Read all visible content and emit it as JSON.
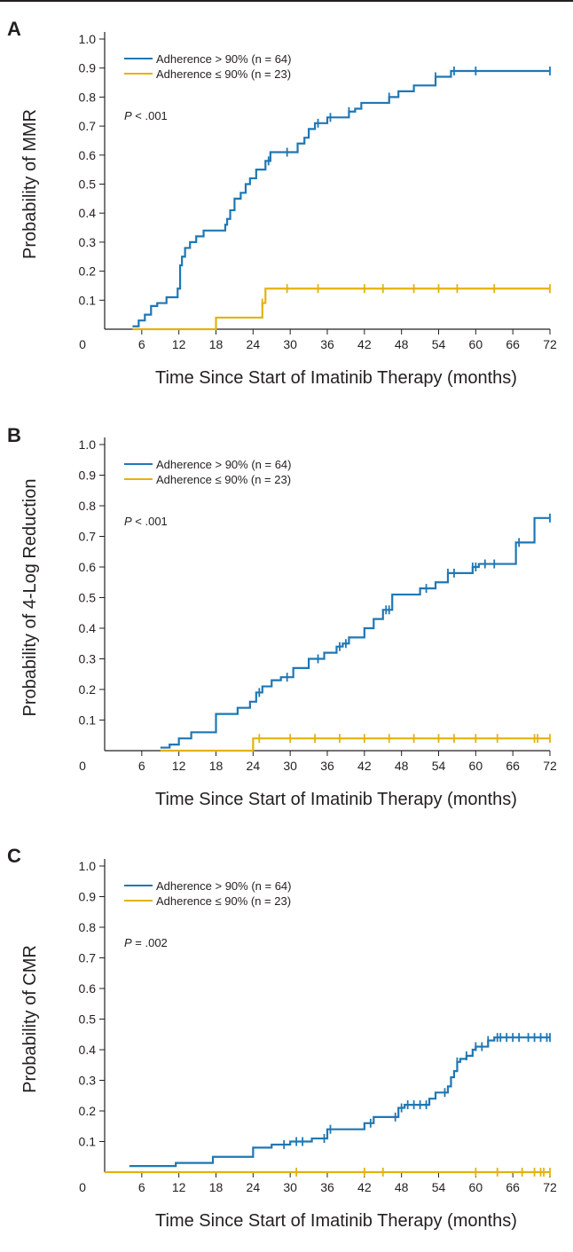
{
  "chart_data": [
    {
      "type": "line",
      "panel": "A",
      "ylabel": "Probability of MMR",
      "xlabel": "Time Since Start of Imatinib Therapy (months)",
      "xticks": [
        "0",
        "6",
        "12",
        "18",
        "24",
        "30",
        "36",
        "42",
        "48",
        "54",
        "60",
        "66",
        "72"
      ],
      "yticks": [
        "1.0",
        "0.9",
        "0.8",
        "0.7",
        "0.6",
        "0.5",
        "0.4",
        "0.3",
        "0.2",
        "0.1"
      ],
      "xlim": [
        0,
        72
      ],
      "ylim": [
        0,
        1.0
      ],
      "annotation": {
        "prefix": "P",
        "text": " < .001"
      },
      "series": [
        {
          "name": "Adherence > 90% (n = 64)",
          "color": "#1f77b4",
          "x": [
            4.5,
            5.5,
            6.5,
            7.5,
            8.5,
            10,
            11.8,
            12.2,
            12.5,
            13,
            13.8,
            14.8,
            16,
            19.5,
            19.8,
            20.3,
            21,
            22,
            22.8,
            23.5,
            24.5,
            26,
            26.8,
            30,
            31.2,
            32.3,
            33,
            34,
            36,
            36.5,
            39.5,
            40.5,
            41.5,
            43,
            46,
            47.5,
            50,
            53.5,
            56,
            72
          ],
          "y": [
            0.01,
            0.03,
            0.05,
            0.08,
            0.09,
            0.11,
            0.14,
            0.22,
            0.25,
            0.28,
            0.3,
            0.32,
            0.34,
            0.36,
            0.38,
            0.41,
            0.45,
            0.47,
            0.5,
            0.52,
            0.55,
            0.58,
            0.61,
            0.61,
            0.64,
            0.66,
            0.69,
            0.71,
            0.73,
            0.73,
            0.75,
            0.76,
            0.78,
            0.78,
            0.8,
            0.82,
            0.84,
            0.87,
            0.89,
            0.89
          ],
          "censored": [
            26.5,
            29.5,
            34.5,
            36.5,
            39.5,
            46,
            53.5,
            56.5,
            60,
            72
          ]
        },
        {
          "name": "Adherence ≤ 90% (n = 23)",
          "color": "#e3b20e",
          "x": [
            4.5,
            18,
            25.5,
            26,
            72
          ],
          "y": [
            0,
            0.04,
            0.09,
            0.14,
            0.14
          ],
          "censored": [
            25.5,
            29.5,
            34.5,
            42,
            45,
            50,
            54,
            57,
            63,
            72
          ]
        }
      ]
    },
    {
      "type": "line",
      "panel": "B",
      "ylabel": "Probability of 4-Log Reduction",
      "xlabel": "Time Since Start of Imatinib Therapy (months)",
      "xticks": [
        "0",
        "6",
        "12",
        "18",
        "24",
        "30",
        "36",
        "42",
        "48",
        "54",
        "60",
        "66",
        "72"
      ],
      "yticks": [
        "1.0",
        "0.9",
        "0.8",
        "0.7",
        "0.6",
        "0.5",
        "0.4",
        "0.3",
        "0.2",
        "0.1"
      ],
      "xlim": [
        0,
        72
      ],
      "ylim": [
        0,
        1.0
      ],
      "annotation": {
        "prefix": "P",
        "text": " < .001"
      },
      "series": [
        {
          "name": "Adherence > 90% (n = 64)",
          "color": "#1f77b4",
          "x": [
            9,
            10.5,
            12,
            14,
            18,
            21.5,
            23.5,
            24.5,
            25.5,
            27,
            28.5,
            30.5,
            33,
            35.5,
            37.5,
            38.5,
            39.5,
            42,
            43.5,
            45,
            46.5,
            51,
            53.5,
            55.5,
            59.5,
            60.5,
            66.5,
            69.5,
            72
          ],
          "y": [
            0.01,
            0.02,
            0.04,
            0.06,
            0.12,
            0.14,
            0.16,
            0.19,
            0.21,
            0.23,
            0.24,
            0.27,
            0.3,
            0.32,
            0.34,
            0.35,
            0.37,
            0.4,
            0.43,
            0.46,
            0.51,
            0.53,
            0.55,
            0.58,
            0.6,
            0.61,
            0.68,
            0.76,
            0.76
          ],
          "censored": [
            25,
            29.5,
            34.5,
            38,
            39,
            45.5,
            46,
            52,
            55.5,
            56.5,
            59.5,
            60,
            61.5,
            63,
            67,
            72
          ]
        },
        {
          "name": "Adherence ≤ 90% (n = 23)",
          "color": "#e3b20e",
          "x": [
            9,
            24,
            72
          ],
          "y": [
            0,
            0.04,
            0.04
          ],
          "censored": [
            25,
            30,
            34,
            38,
            42,
            46,
            50,
            54,
            56.5,
            60,
            63.5,
            69.5,
            70,
            72
          ]
        }
      ]
    },
    {
      "type": "line",
      "panel": "C",
      "ylabel": "Probability of CMR",
      "xlabel": "Time Since Start of Imatinib Therapy (months)",
      "xticks": [
        "0",
        "6",
        "12",
        "18",
        "24",
        "30",
        "36",
        "42",
        "48",
        "54",
        "60",
        "66",
        "72"
      ],
      "yticks": [
        "1.0",
        "0.9",
        "0.8",
        "0.7",
        "0.6",
        "0.5",
        "0.4",
        "0.3",
        "0.2",
        "0.1"
      ],
      "xlim": [
        0,
        72
      ],
      "ylim": [
        0,
        1.0
      ],
      "annotation": {
        "prefix": "P",
        "text": " = .002"
      },
      "series": [
        {
          "name": "Adherence > 90% (n = 64)",
          "color": "#1f77b4",
          "x": [
            4,
            11.5,
            17.5,
            24,
            27,
            30,
            33.5,
            36,
            42,
            43.5,
            47.5,
            48.5,
            52.5,
            53.5,
            55.5,
            56,
            56.5,
            57,
            57.5,
            58.5,
            59.5,
            60,
            62,
            63,
            72
          ],
          "y": [
            0.02,
            0.03,
            0.05,
            0.08,
            0.09,
            0.1,
            0.11,
            0.14,
            0.16,
            0.18,
            0.21,
            0.22,
            0.24,
            0.26,
            0.28,
            0.31,
            0.33,
            0.36,
            0.37,
            0.38,
            0.4,
            0.41,
            0.43,
            0.44,
            0.44
          ],
          "censored": [
            29,
            31,
            32,
            35.5,
            36.5,
            43,
            47,
            48,
            49,
            50,
            51,
            52,
            55,
            57,
            58.5,
            60,
            61,
            62,
            63.5,
            64,
            65,
            66,
            67,
            68.5,
            69.5,
            70.5,
            71.5,
            72
          ]
        },
        {
          "name": "Adherence ≤ 90% (n = 23)",
          "color": "#e3b20e",
          "x": [
            0,
            72
          ],
          "y": [
            0,
            0
          ],
          "censored": [
            31,
            42,
            45,
            60,
            63.5,
            67.5,
            69.5,
            70.5,
            71,
            72
          ]
        }
      ]
    }
  ]
}
